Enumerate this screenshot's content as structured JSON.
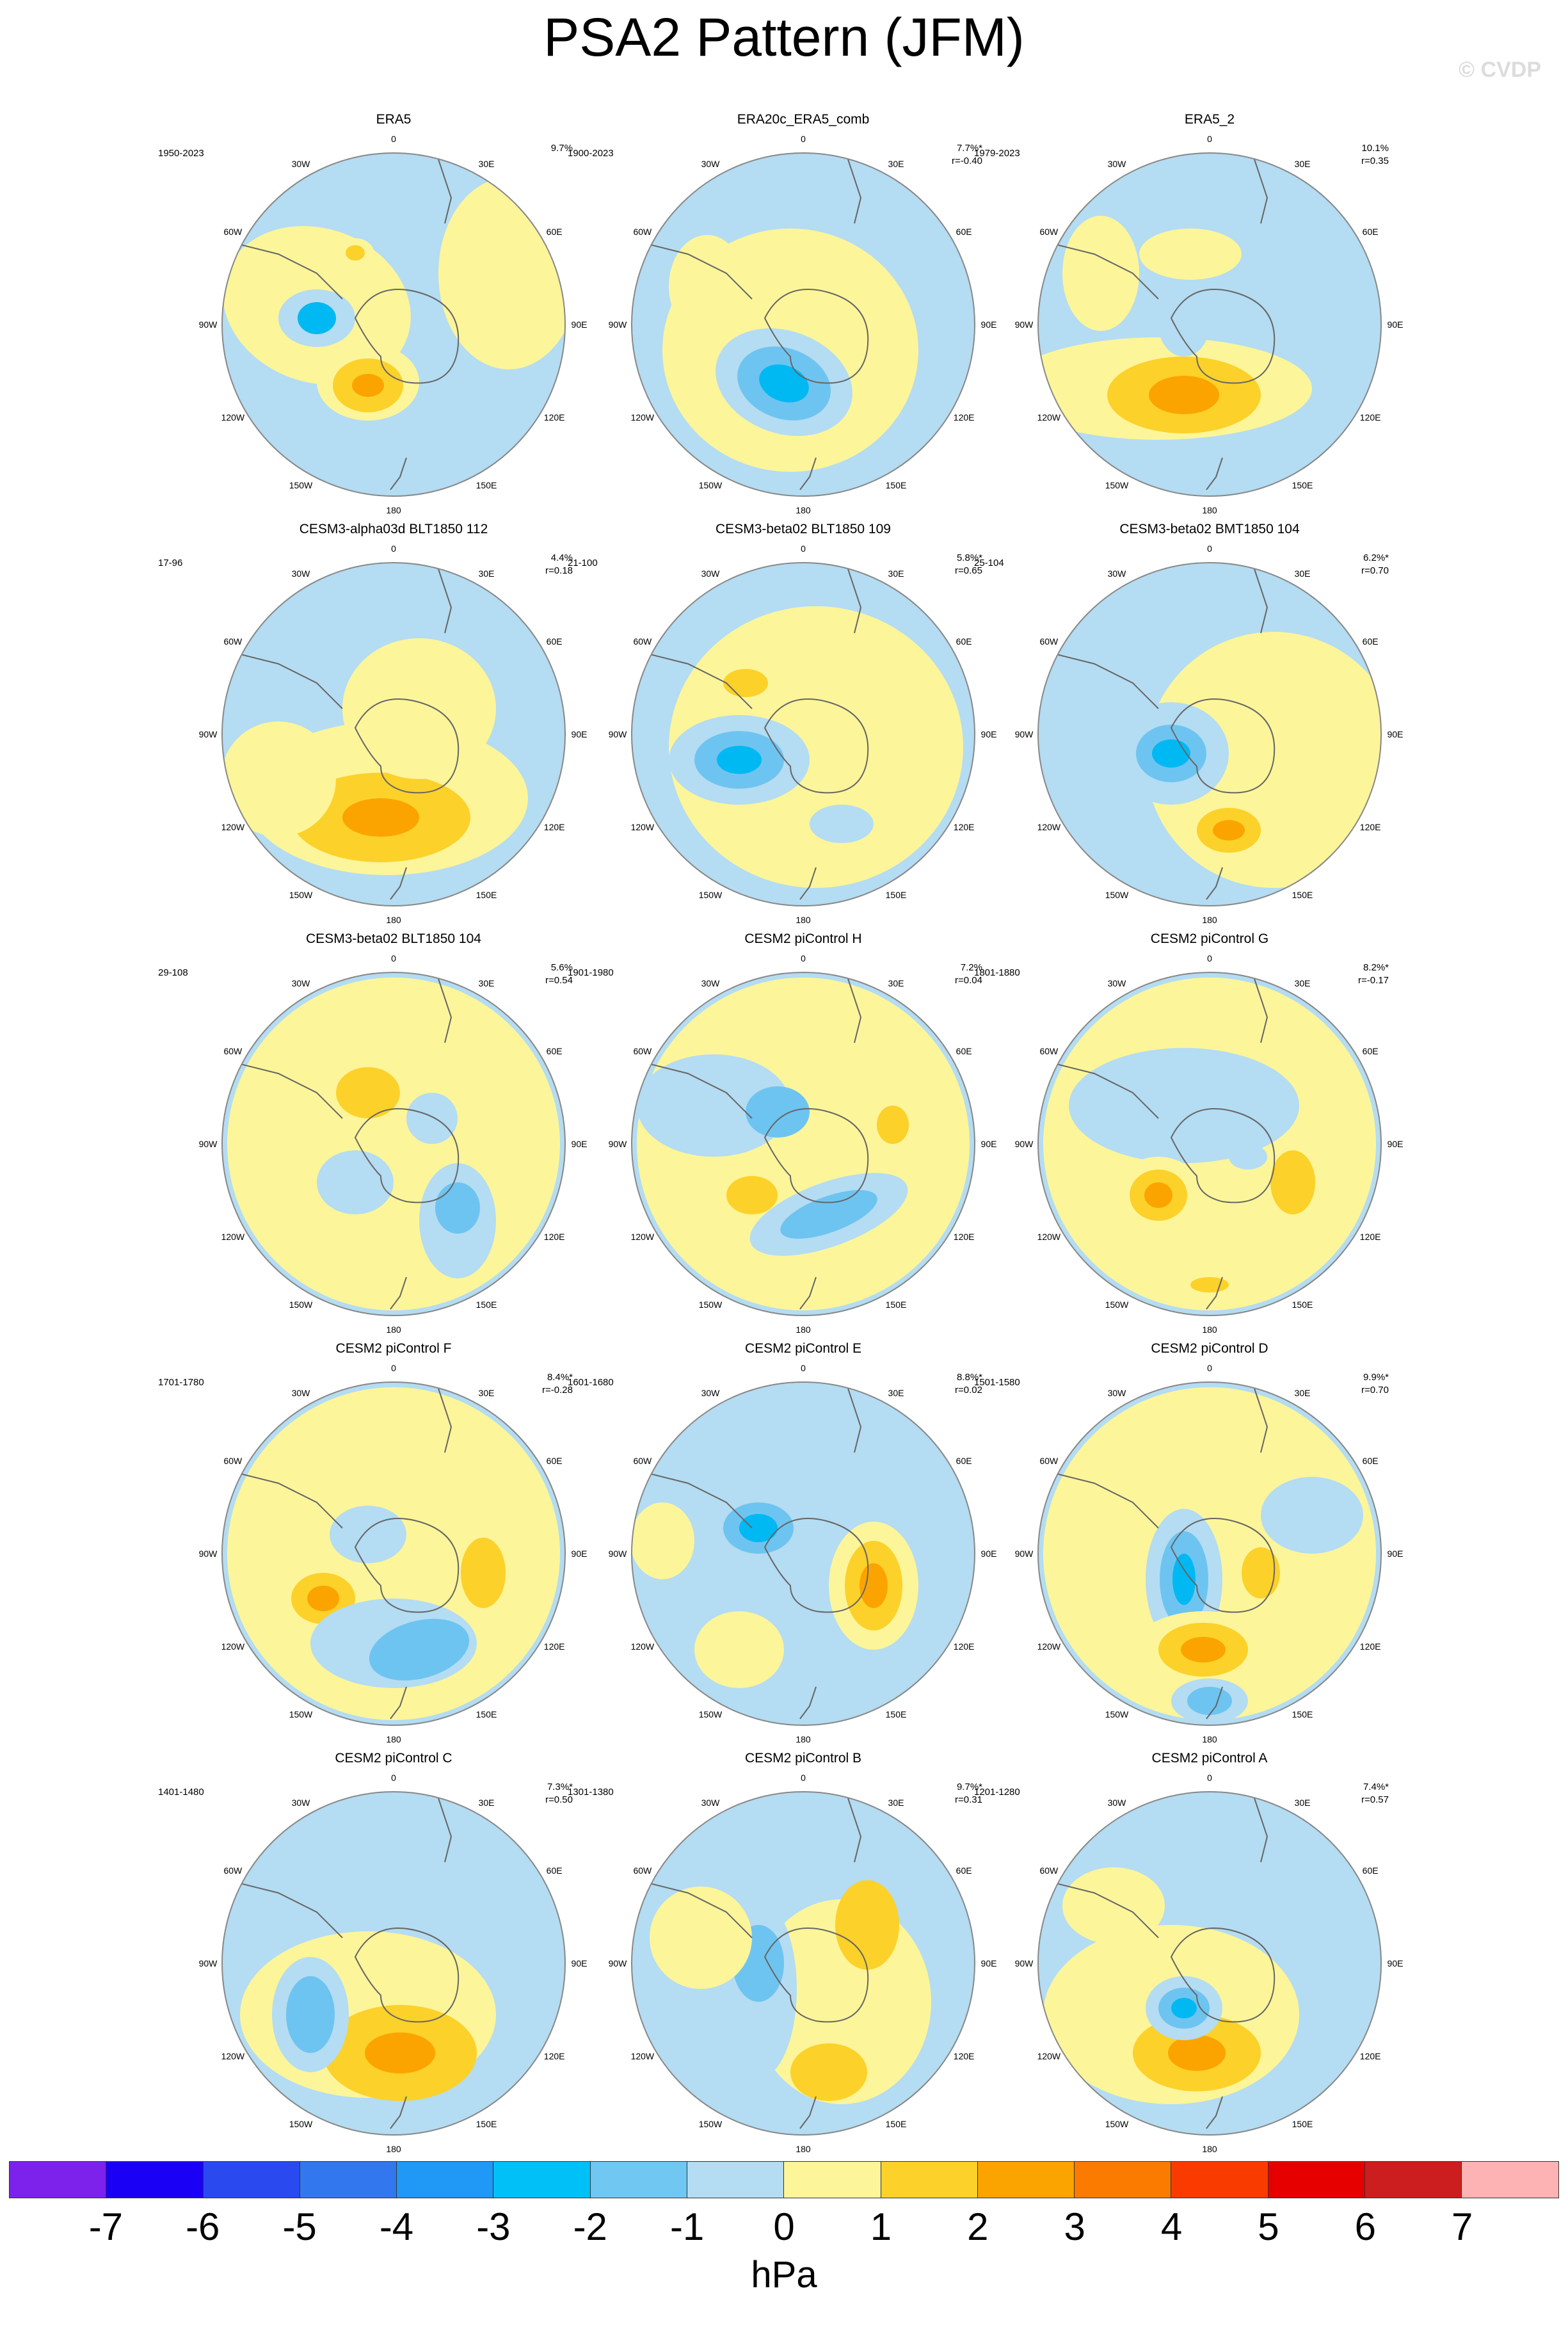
{
  "title": "PSA2 Pattern (JFM)",
  "watermark": "© CVDP",
  "lon_labels": [
    "0",
    "30E",
    "60E",
    "90E",
    "120E",
    "150E",
    "180",
    "150W",
    "120W",
    "90W",
    "60W",
    "30W"
  ],
  "palette": {
    "neg1": "#b4dcf2",
    "neg2": "#6ec4f0",
    "neg3": "#00b8f2",
    "pos1": "#fdf59a",
    "pos2": "#fcd12a",
    "pos3": "#fba400",
    "outline": "#888888",
    "coast": "#666666"
  },
  "panels": [
    {
      "title": "ERA5",
      "years": "1950-2023",
      "pct": "9.7%",
      "r": ""
    },
    {
      "title": "ERA20c_ERA5_comb",
      "years": "1900-2023",
      "pct": "7.7%*",
      "r": "r=-0.40"
    },
    {
      "title": "ERA5_2",
      "years": "1979-2023",
      "pct": "10.1%",
      "r": "r=0.35"
    },
    {
      "title": "CESM3-alpha03d BLT1850 112",
      "years": "17-96",
      "pct": "4.4%",
      "r": "r=0.18"
    },
    {
      "title": "CESM3-beta02 BLT1850 109",
      "years": "21-100",
      "pct": "5.8%*",
      "r": "r=0.65"
    },
    {
      "title": "CESM3-beta02 BMT1850 104",
      "years": "25-104",
      "pct": "6.2%*",
      "r": "r=0.70"
    },
    {
      "title": "CESM3-beta02 BLT1850 104",
      "years": "29-108",
      "pct": "5.6%",
      "r": "r=0.54"
    },
    {
      "title": "CESM2 piControl H",
      "years": "1901-1980",
      "pct": "7.2%",
      "r": "r=0.04"
    },
    {
      "title": "CESM2 piControl G",
      "years": "1801-1880",
      "pct": "8.2%*",
      "r": "r=-0.17"
    },
    {
      "title": "CESM2 piControl F",
      "years": "1701-1780",
      "pct": "8.4%*",
      "r": "r=-0.28"
    },
    {
      "title": "CESM2 piControl E",
      "years": "1601-1680",
      "pct": "8.8%*",
      "r": "r=0.02"
    },
    {
      "title": "CESM2 piControl D",
      "years": "1501-1580",
      "pct": "9.9%*",
      "r": "r=0.70"
    },
    {
      "title": "CESM2 piControl C",
      "years": "1401-1480",
      "pct": "7.3%*",
      "r": "r=0.50"
    },
    {
      "title": "CESM2 piControl B",
      "years": "1301-1380",
      "pct": "9.7%*",
      "r": "r=0.31"
    },
    {
      "title": "CESM2 piControl A",
      "years": "1201-1280",
      "pct": "7.4%*",
      "r": "r=0.57"
    }
  ],
  "colorbar": {
    "colors": [
      "#7d22ea",
      "#1a00f5",
      "#2a4af0",
      "#3377ee",
      "#1f98f6",
      "#00c0f8",
      "#6fc7f2",
      "#b4dcf2",
      "#fdf59a",
      "#fcd12a",
      "#fba400",
      "#fb7a00",
      "#fa3b00",
      "#e60000",
      "#cc1e1e",
      "#fdb3b3"
    ],
    "ticks": [
      "-7",
      "-6",
      "-5",
      "-4",
      "-3",
      "-2",
      "-1",
      "0",
      "1",
      "2",
      "3",
      "4",
      "5",
      "6",
      "7"
    ],
    "unit": "hPa"
  }
}
